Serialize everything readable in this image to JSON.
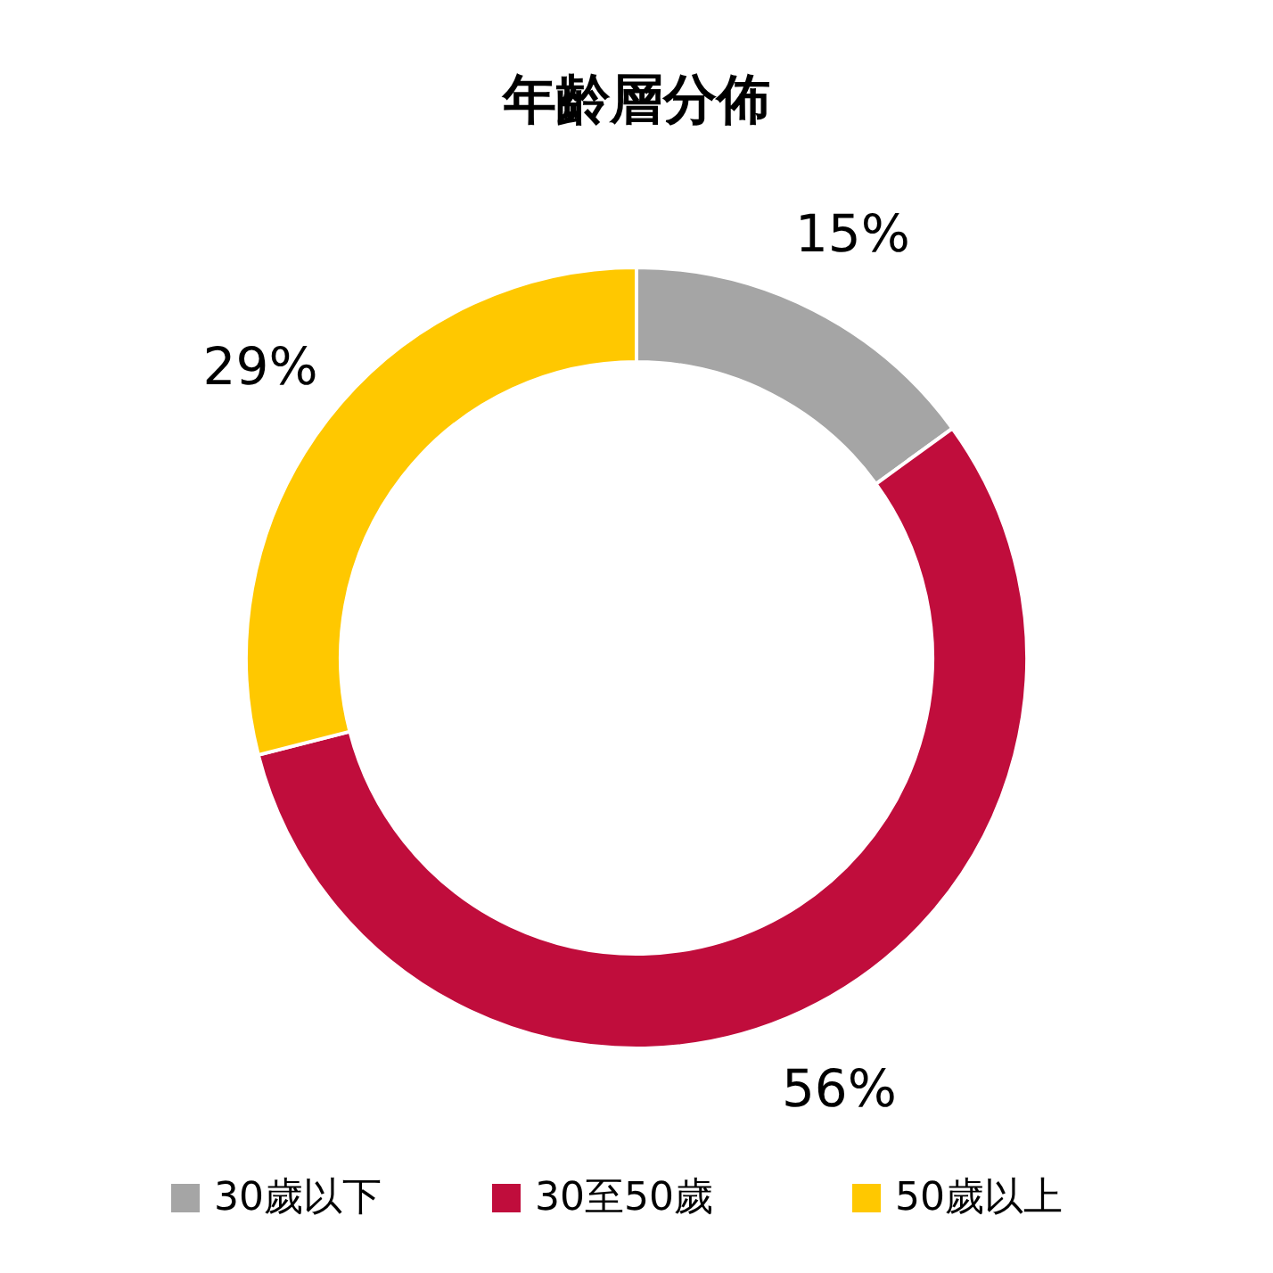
{
  "chart_data": {
    "type": "donut",
    "title": "年齡層分佈",
    "categories": [
      "30歲以下",
      "30至50歲",
      "50歲以上"
    ],
    "values": [
      15,
      56,
      29
    ],
    "colors": [
      "#a5a5a5",
      "#c00d3c",
      "#ffc800"
    ],
    "value_labels": [
      "15%",
      "56%",
      "29%"
    ],
    "legend": "bottom"
  }
}
